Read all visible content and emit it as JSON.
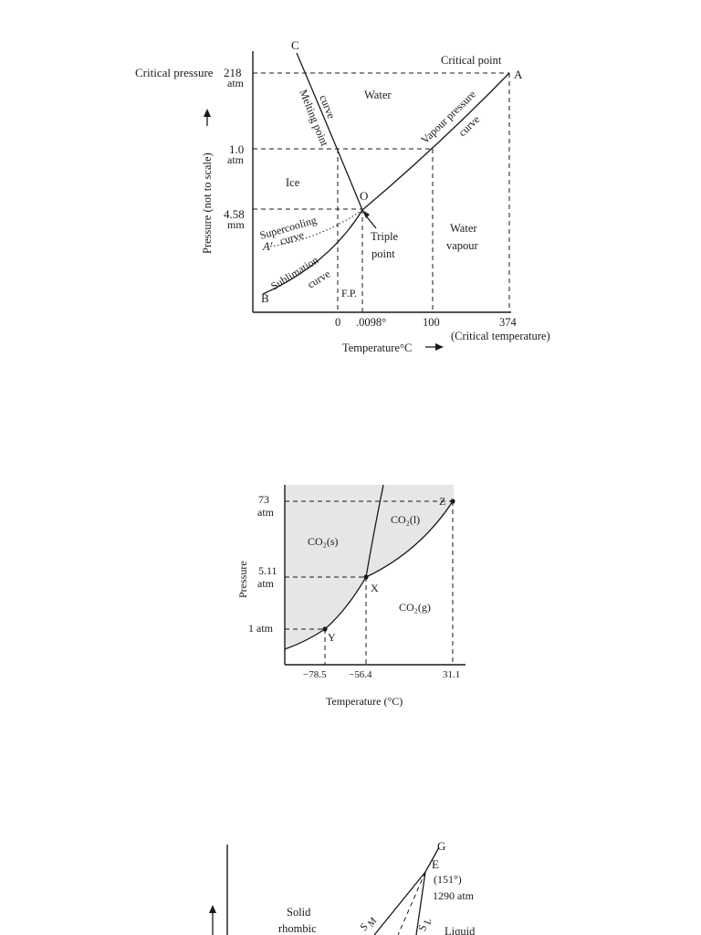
{
  "water_diagram": {
    "critical_pressure_label": "Critical pressure",
    "critical_point_label": "Critical point",
    "y_axis_label": "Pressure (not to scale)",
    "x_axis_label": "Temperature°C",
    "critical_temperature_label": "(Critical temperature)",
    "y_ticks": [
      {
        "value": "218",
        "unit": "atm"
      },
      {
        "value": "1.0",
        "unit": "atm"
      },
      {
        "value": "4.58",
        "unit": "mm"
      }
    ],
    "x_ticks": [
      "0",
      ".0098°",
      "100",
      "374"
    ],
    "points": {
      "C": "C",
      "A": "A",
      "O": "O",
      "B": "B",
      "A_prime": "A′"
    },
    "regions": {
      "water": "Water",
      "ice": "Ice",
      "water_vapour_1": "Water",
      "water_vapour_2": "vapour"
    },
    "curve_labels": {
      "melting_point": "Melting point",
      "melting_curve": "curve",
      "vapour_pressure": "Vapour pressure",
      "vapour_curve": "curve",
      "supercooling": "Supercooling",
      "supercooling_curve": "curve",
      "sublimation": "Sublimation",
      "sublimation_curve": "curve"
    },
    "triple_point_1": "Triple",
    "triple_point_2": "point",
    "fp_label": "F.P."
  },
  "co2_diagram": {
    "y_axis_label": "Pressure",
    "x_axis_label": "Temperature (°C)",
    "y_ticks": [
      {
        "value": "73",
        "unit": "atm"
      },
      {
        "value": "5.11",
        "unit": "atm"
      },
      {
        "value": "1 atm",
        "unit": ""
      }
    ],
    "x_ticks": [
      "−78.5",
      "−56.4",
      "31.1"
    ],
    "phases": {
      "solid": "CO₂(s)",
      "liquid": "CO₂(l)",
      "gas": "CO₂(g)"
    },
    "points": {
      "Z": "Z",
      "X": "X",
      "Y": "Y"
    },
    "shade_color": "#e6e6e6"
  },
  "sulfur_diagram": {
    "points": {
      "G": "G",
      "E": "E"
    },
    "e_temp": "(151°)",
    "e_pressure": "1290 atm",
    "region_1": "Solid",
    "region_2": "rhombic",
    "liquid": "Liquid",
    "curve_sm": "S",
    "curve_sm_sub": "M",
    "curve_sl": "S",
    "curve_sl_sub": "L"
  }
}
